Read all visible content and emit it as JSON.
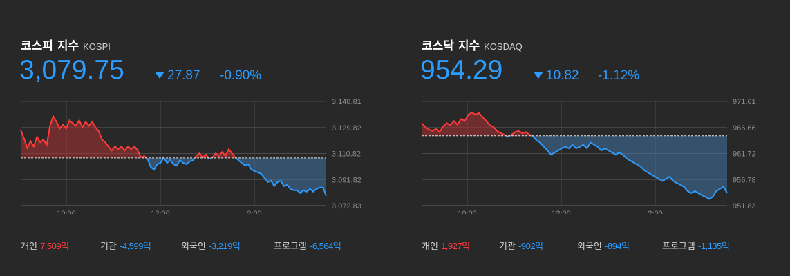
{
  "indices": [
    {
      "name": "코스피 지수",
      "code": "KOSPI",
      "value": "3,079.75",
      "change": "27.87",
      "change_pct": "-0.90%",
      "direction": "down",
      "traders": [
        {
          "label": "개인",
          "value": "7,509억",
          "dir": "up"
        },
        {
          "label": "기관",
          "value": "-4,599억",
          "dir": "down"
        },
        {
          "label": "외국인",
          "value": "-3,219억",
          "dir": "down"
        },
        {
          "label": "프로그램",
          "value": "-6,564억",
          "dir": "down"
        }
      ]
    },
    {
      "name": "코스닥 지수",
      "code": "KOSDAQ",
      "value": "954.29",
      "change": "10.82",
      "change_pct": "-1.12%",
      "direction": "down",
      "traders": [
        {
          "label": "개인",
          "value": "1,927억",
          "dir": "up"
        },
        {
          "label": "기관",
          "value": "-902억",
          "dir": "down"
        },
        {
          "label": "외국인",
          "value": "-894억",
          "dir": "down"
        },
        {
          "label": "프로그램",
          "value": "-1,135억",
          "dir": "down"
        }
      ]
    }
  ],
  "colors": {
    "up": "#ff3b3b",
    "down": "#2c9cff",
    "background": "#282828"
  },
  "chart_data": [
    {
      "type": "area",
      "title": "",
      "baseline": 3107.62,
      "ylim": [
        3072.83,
        3148.81
      ],
      "yticks": [
        "3,148.81",
        "3,129.82",
        "3,110.82",
        "3,091.82",
        "3,072.83"
      ],
      "xticks": [
        "10:00",
        "12:00",
        "2:00"
      ],
      "grid": true,
      "series": [
        {
          "values": [
            3128,
            3122,
            3115,
            3120,
            3116,
            3123,
            3119,
            3121,
            3117,
            3131,
            3138,
            3134,
            3129,
            3132,
            3129,
            3135,
            3133,
            3131,
            3135,
            3130,
            3134,
            3131,
            3134,
            3130,
            3127,
            3121,
            3119,
            3116,
            3113,
            3116,
            3114,
            3116,
            3113,
            3116,
            3114,
            3116,
            3113,
            3108,
            3109,
            3107,
            3101,
            3099,
            3103,
            3104,
            3108,
            3104,
            3106,
            3103,
            3102,
            3106,
            3104,
            3103,
            3105,
            3106,
            3109,
            3111,
            3108,
            3110,
            3107,
            3108,
            3111,
            3109,
            3112,
            3109,
            3114,
            3111,
            3108,
            3106,
            3104,
            3102,
            3103,
            3099,
            3098,
            3097,
            3096,
            3093,
            3090,
            3091,
            3087,
            3090,
            3091,
            3087,
            3088,
            3085,
            3084,
            3084,
            3082,
            3084,
            3083,
            3085,
            3083,
            3085,
            3086,
            3086,
            3080
          ]
        }
      ]
    },
    {
      "type": "area",
      "title": "",
      "baseline": 965.1,
      "ylim": [
        951.83,
        971.61
      ],
      "yticks": [
        "971.61",
        "966.66",
        "961.72",
        "956.78",
        "951.83"
      ],
      "xticks": [
        "10:00",
        "12:00",
        "2:00"
      ],
      "grid": true,
      "series": [
        {
          "values": [
            967.5,
            966.8,
            966.3,
            966.0,
            966.4,
            965.8,
            966.9,
            967.5,
            967.1,
            967.9,
            967.2,
            968.3,
            967.9,
            969.1,
            969.5,
            969.1,
            969.4,
            968.6,
            967.9,
            967.1,
            966.8,
            966.0,
            965.6,
            965.3,
            964.9,
            965.3,
            965.8,
            966.0,
            965.6,
            965.8,
            965.3,
            965.0,
            964.2,
            963.8,
            963.0,
            962.3,
            961.5,
            961.9,
            962.3,
            962.7,
            963.0,
            962.7,
            963.4,
            962.7,
            963.0,
            963.4,
            962.7,
            963.8,
            963.4,
            963.0,
            962.3,
            962.7,
            962.3,
            961.9,
            961.5,
            961.9,
            961.5,
            960.8,
            960.4,
            960.0,
            959.6,
            959.2,
            958.5,
            958.1,
            957.7,
            957.3,
            956.9,
            956.5,
            956.9,
            957.3,
            956.5,
            956.1,
            955.8,
            955.4,
            954.6,
            954.2,
            954.6,
            954.2,
            953.8,
            953.5,
            953.1,
            953.5,
            954.6,
            955.0,
            955.4,
            954.2
          ]
        }
      ]
    }
  ]
}
